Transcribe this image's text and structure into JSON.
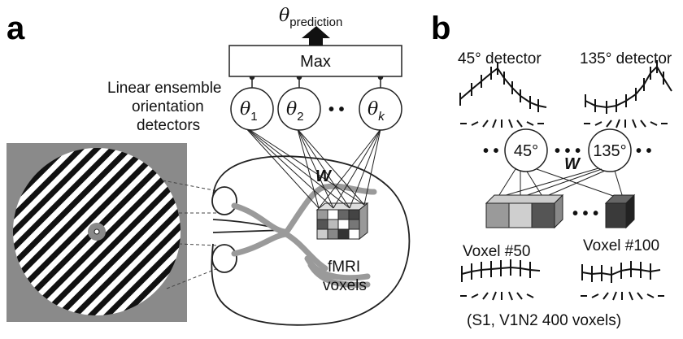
{
  "panel_a": {
    "letter": "a",
    "output_label": "θ",
    "output_sub": "prediction",
    "max_label": "Max",
    "ensemble_label_1": "Linear ensemble",
    "ensemble_label_2": "orientation",
    "ensemble_label_3": "detectors",
    "detectors": [
      {
        "sym": "θ",
        "sub": "1"
      },
      {
        "sym": "θ",
        "sub": "2"
      },
      {
        "sym": "θ",
        "sub": "k"
      }
    ],
    "ellipsis": "• •",
    "weights_label": "W",
    "voxels_label_1": "fMRI",
    "voxels_label_2": "voxels"
  },
  "panel_b": {
    "letter": "b",
    "detector_1_title": "45° detector",
    "detector_2_title": "135° detector",
    "node_1": "45°",
    "node_2": "135°",
    "dots_left": "• •",
    "dots_mid": "• • •",
    "dots_right": "• •",
    "dots_voxels": "• • •",
    "weights_label": "W",
    "voxel_1_title": "Voxel #50",
    "voxel_2_title": "Voxel #100",
    "caption": "(S1, V1N2 400 voxels)"
  }
}
